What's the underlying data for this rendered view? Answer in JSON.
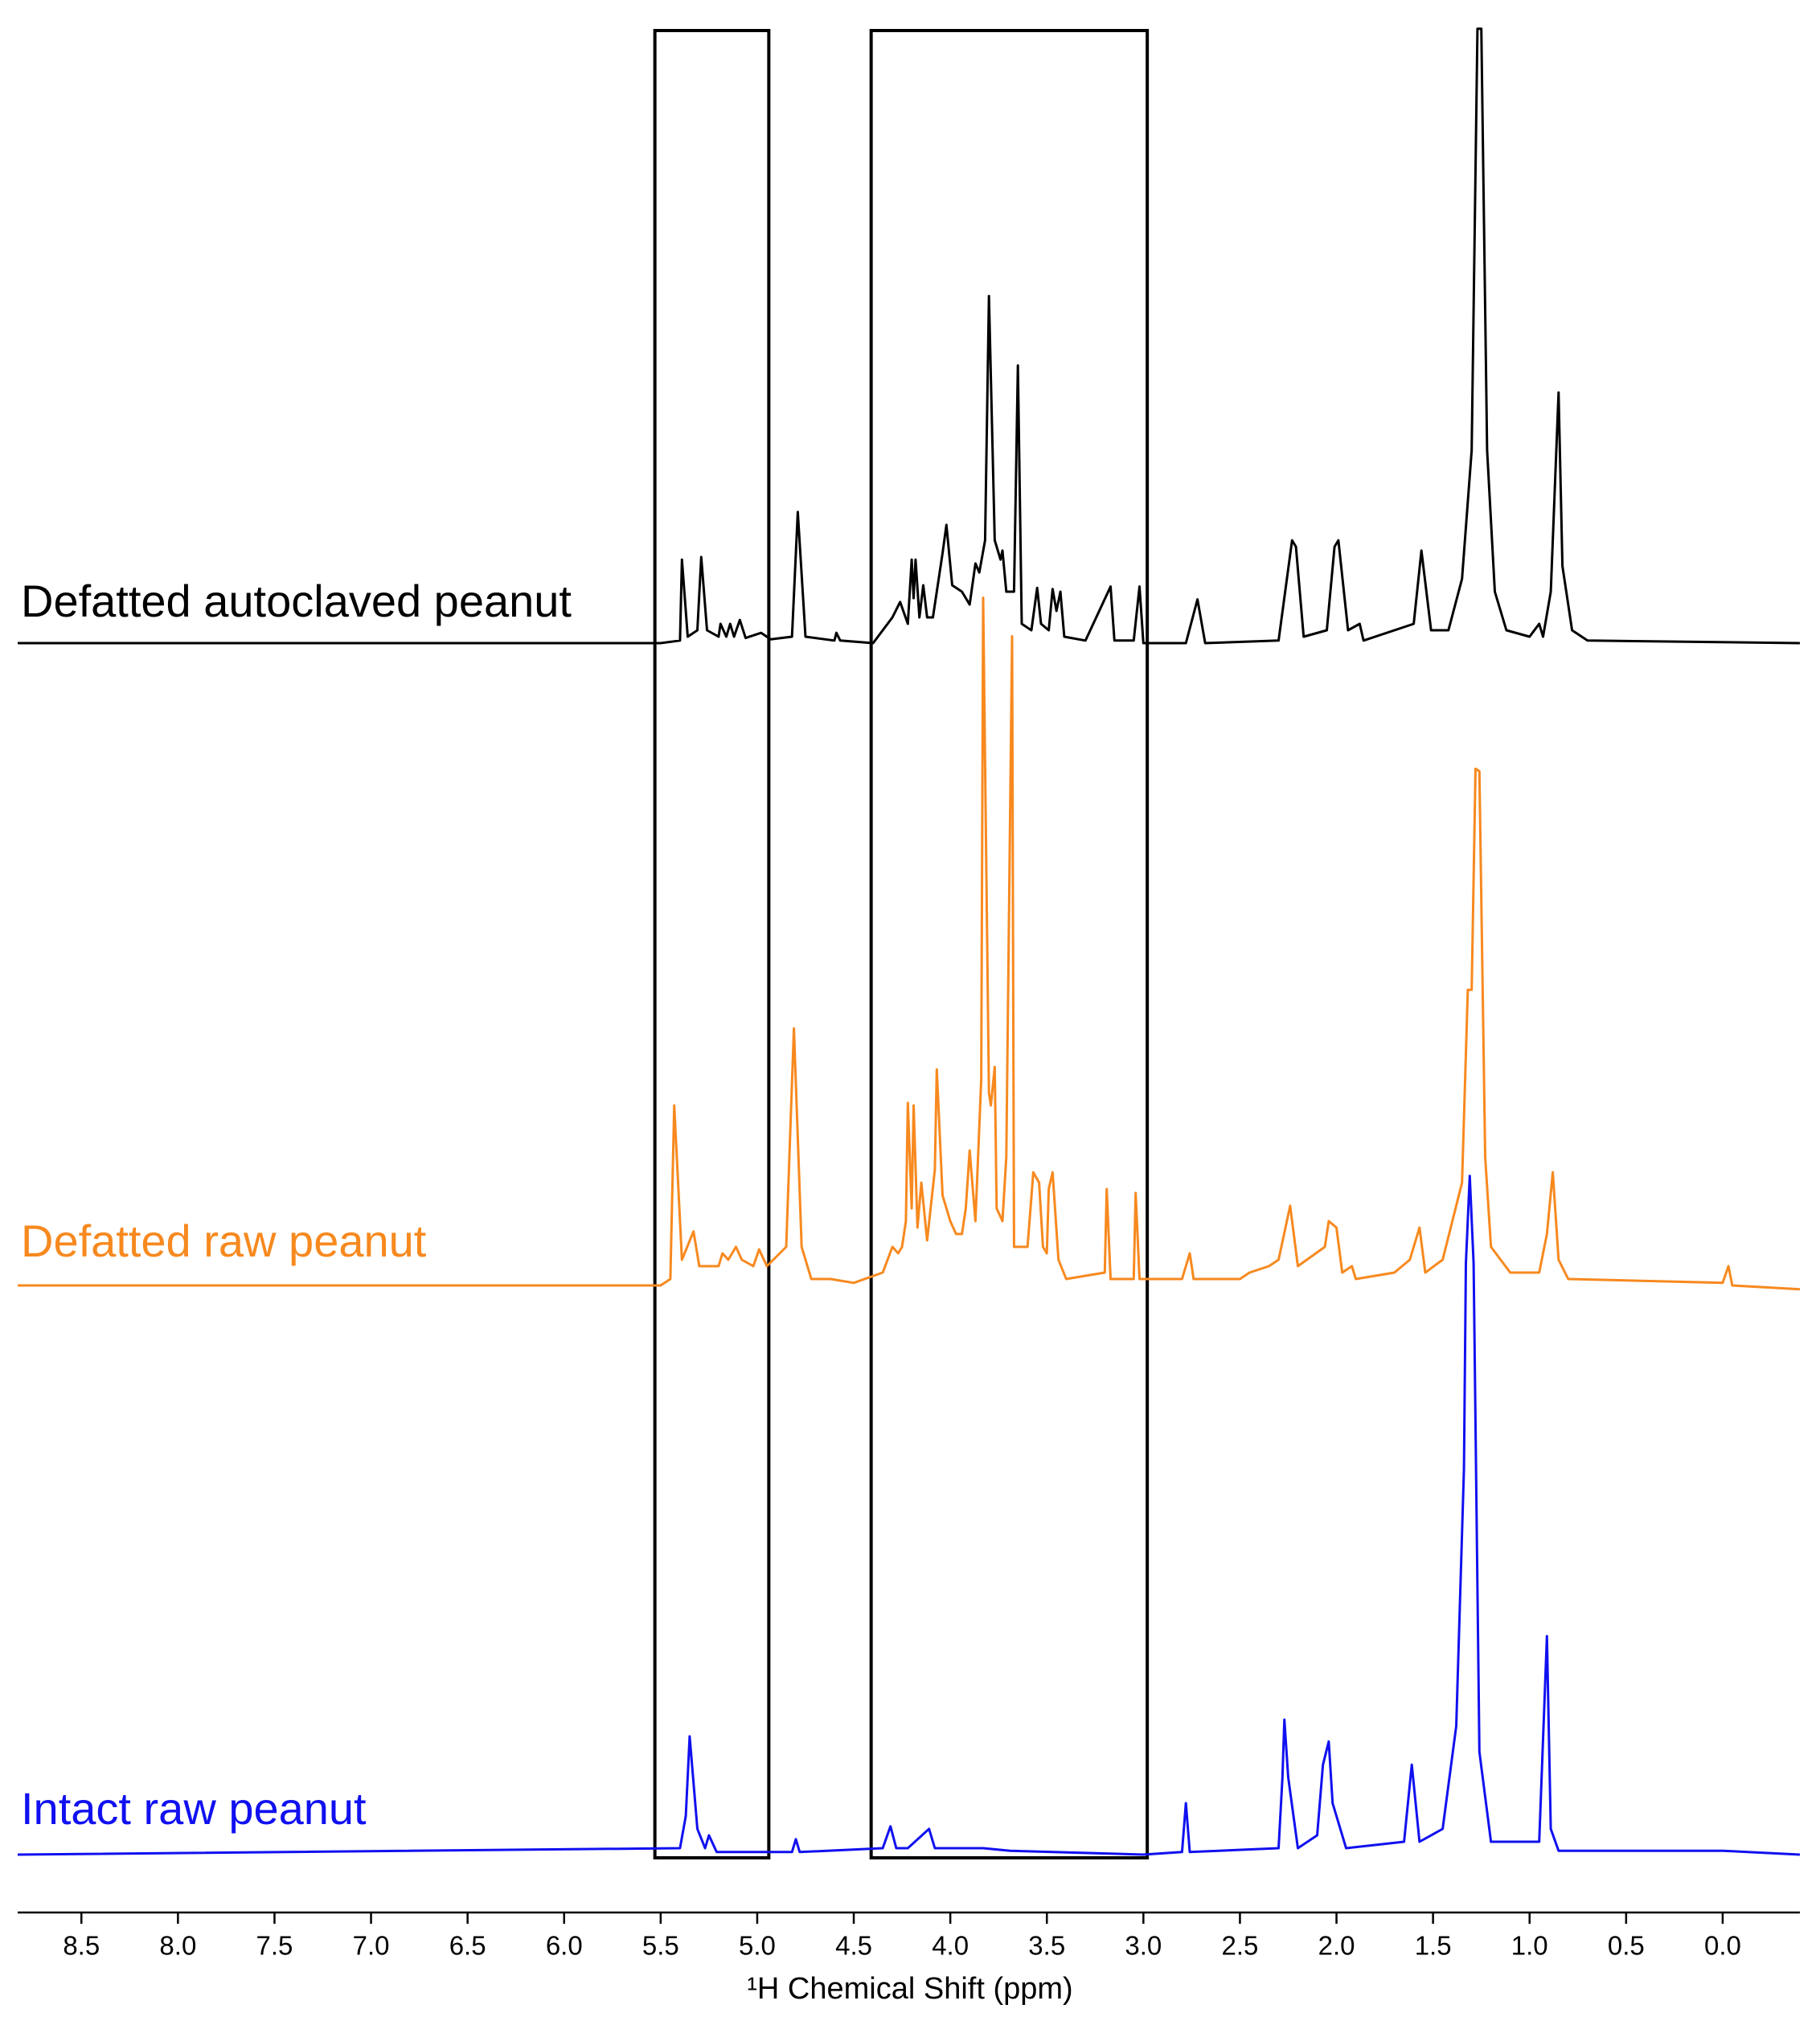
{
  "chart_data": {
    "type": "line",
    "xlabel": "¹H Chemical Shift (ppm)",
    "xlim": [
      8.83,
      -0.4
    ],
    "xticks": [
      8.5,
      {
        "value": 8,
        "label": "8.0"
      },
      7.5,
      {
        "value": 7,
        "label": "7.0"
      },
      6.5,
      {
        "value": 6,
        "label": "6.0"
      },
      5.5,
      {
        "value": 5,
        "label": "5.0"
      },
      4.5,
      {
        "value": 4,
        "label": "4.0"
      },
      3.5,
      {
        "value": 3,
        "label": "3.0"
      },
      2.5,
      {
        "value": 2,
        "label": "2.0"
      },
      1.5,
      {
        "value": 1,
        "label": "1.0"
      },
      0.5,
      {
        "value": 0,
        "label": "0.0"
      }
    ],
    "highlight_ranges": [
      [
        5.53,
        4.94
      ],
      [
        4.41,
        2.98
      ]
    ],
    "series": [
      {
        "name": "Defatted autoclaved peanut",
        "color": "#000000",
        "x": [
          8.83,
          5.5,
          5.4,
          5.39,
          5.36,
          5.31,
          5.29,
          5.26,
          5.2,
          5.19,
          5.16,
          5.14,
          5.12,
          5.09,
          5.06,
          4.98,
          4.93,
          4.82,
          4.79,
          4.75,
          4.6,
          4.59,
          4.57,
          4.4,
          4.3,
          4.26,
          4.22,
          4.2,
          4.19,
          4.18,
          4.16,
          4.14,
          4.12,
          4.09,
          4.04,
          4.02,
          3.99,
          3.94,
          3.9,
          3.87,
          3.85,
          3.82,
          3.8,
          3.77,
          3.74,
          3.73,
          3.71,
          3.67,
          3.65,
          3.63,
          3.58,
          3.55,
          3.53,
          3.49,
          3.47,
          3.45,
          3.43,
          3.41,
          3.3,
          3.17,
          3.15,
          3.05,
          3.02,
          3.0,
          2.78,
          2.72,
          2.68,
          2.3,
          2.23,
          2.21,
          2.17,
          2.05,
          2.01,
          1.99,
          1.94,
          1.88,
          1.86,
          1.6,
          1.56,
          1.51,
          1.42,
          1.35,
          1.3,
          1.27,
          1.25,
          1.22,
          1.18,
          1.12,
          1.0,
          0.95,
          0.93,
          0.89,
          0.85,
          0.83,
          0.78,
          0.7,
          -0.4
        ],
        "values": [
          0,
          0,
          2,
          65,
          5,
          10,
          67,
          10,
          5,
          15,
          5,
          15,
          5,
          18,
          4,
          8,
          3,
          5,
          102,
          5,
          2,
          8,
          2,
          0,
          20,
          32,
          15,
          65,
          35,
          65,
          20,
          45,
          20,
          20,
          70,
          92,
          45,
          40,
          30,
          62,
          55,
          80,
          270,
          80,
          65,
          72,
          40,
          40,
          216,
          15,
          10,
          43,
          15,
          10,
          42,
          25,
          40,
          5,
          2,
          44,
          2,
          2,
          44,
          0,
          0,
          34,
          0,
          2,
          80,
          75,
          5,
          10,
          75,
          80,
          10,
          15,
          2,
          15,
          72,
          10,
          10,
          50,
          150,
          478,
          478,
          150,
          40,
          10,
          5,
          15,
          5,
          40,
          195,
          60,
          10,
          2,
          0
        ]
      },
      {
        "name": "Defatted raw peanut",
        "color": "#f7891f",
        "x": [
          8.83,
          5.5,
          5.45,
          5.43,
          5.39,
          5.33,
          5.3,
          5.2,
          5.18,
          5.15,
          5.11,
          5.08,
          5.02,
          4.99,
          4.95,
          4.85,
          4.81,
          4.77,
          4.72,
          4.62,
          4.5,
          4.35,
          4.3,
          4.27,
          4.25,
          4.23,
          4.22,
          4.2,
          4.19,
          4.17,
          4.15,
          4.12,
          4.08,
          4.07,
          4.04,
          4.0,
          3.97,
          3.94,
          3.92,
          3.9,
          3.87,
          3.84,
          3.83,
          3.8,
          3.79,
          3.77,
          3.76,
          3.73,
          3.71,
          3.68,
          3.67,
          3.6,
          3.57,
          3.54,
          3.52,
          3.5,
          3.49,
          3.47,
          3.44,
          3.4,
          3.2,
          3.19,
          3.17,
          3.05,
          3.04,
          3.02,
          2.8,
          2.76,
          2.74,
          2.5,
          2.45,
          2.35,
          2.3,
          2.24,
          2.2,
          2.06,
          2.04,
          2.0,
          1.97,
          1.92,
          1.9,
          1.7,
          1.62,
          1.57,
          1.54,
          1.45,
          1.35,
          1.32,
          1.3,
          1.28,
          1.26,
          1.23,
          1.2,
          1.1,
          0.95,
          0.91,
          0.88,
          0.85,
          0.8,
          0.0,
          -0.03,
          -0.05,
          -0.4
        ],
        "values": [
          0,
          0,
          5,
          140,
          20,
          42,
          15,
          15,
          25,
          20,
          30,
          20,
          15,
          28,
          15,
          30,
          200,
          30,
          5,
          5,
          2,
          10,
          30,
          25,
          30,
          50,
          142,
          60,
          140,
          45,
          80,
          35,
          90,
          168,
          70,
          50,
          40,
          40,
          60,
          105,
          50,
          160,
          535,
          150,
          140,
          170,
          60,
          50,
          100,
          505,
          30,
          30,
          88,
          80,
          30,
          25,
          75,
          88,
          20,
          5,
          10,
          75,
          5,
          5,
          72,
          5,
          5,
          25,
          5,
          5,
          10,
          15,
          20,
          62,
          15,
          30,
          50,
          45,
          10,
          15,
          5,
          10,
          20,
          45,
          10,
          20,
          80,
          230,
          230,
          402,
          400,
          100,
          30,
          10,
          10,
          40,
          88,
          20,
          5,
          2,
          15,
          0,
          -3
        ]
      },
      {
        "name": "Intact raw peanut",
        "color": "#1010f0",
        "x": [
          8.83,
          5.4,
          5.37,
          5.35,
          5.31,
          5.27,
          5.25,
          5.21,
          4.82,
          4.8,
          4.78,
          4.35,
          4.31,
          4.28,
          4.22,
          4.11,
          4.08,
          3.83,
          3.69,
          3.0,
          2.8,
          2.78,
          2.76,
          2.3,
          2.28,
          2.27,
          2.25,
          2.2,
          2.1,
          2.07,
          2.04,
          2.02,
          1.95,
          1.65,
          1.61,
          1.57,
          1.45,
          1.38,
          1.34,
          1.33,
          1.31,
          1.29,
          1.26,
          1.2,
          0.95,
          0.91,
          0.89,
          0.85,
          0.0,
          -0.4
        ],
        "values": [
          0,
          5,
          30,
          92,
          20,
          5,
          15,
          2,
          2,
          12,
          2,
          5,
          22,
          5,
          5,
          20,
          5,
          5,
          3,
          0,
          2,
          40,
          2,
          5,
          60,
          105,
          60,
          5,
          15,
          70,
          88,
          40,
          5,
          10,
          70,
          10,
          20,
          100,
          300,
          460,
          528,
          460,
          80,
          10,
          10,
          170,
          20,
          3,
          3,
          0
        ]
      }
    ]
  }
}
